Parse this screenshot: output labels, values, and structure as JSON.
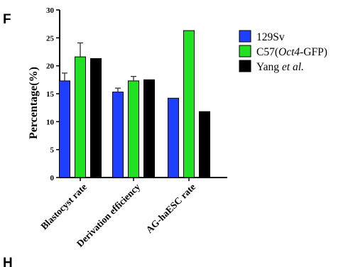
{
  "panel_labels": {
    "top": "F",
    "bottom": "H"
  },
  "chart_data": {
    "type": "bar",
    "ylabel": "Percentage(%)",
    "ylim": [
      0,
      30
    ],
    "yticks": [
      "0",
      "5",
      "10",
      "15",
      "20",
      "25",
      "30"
    ],
    "categories": [
      "Blastocyst rate",
      "Derivation efficiency",
      "AG-haESC rate"
    ],
    "series": [
      {
        "name": "129Sv",
        "color": "#1f3fff",
        "values": [
          17.3,
          15.3,
          14.2
        ],
        "errors": [
          1.4,
          0.7,
          null
        ]
      },
      {
        "name": "C57(Oct4-GFP)",
        "name_parts": {
          "pre": "C57(",
          "ital": "Oct4",
          "post": "-GFP)"
        },
        "color": "#22e022",
        "values": [
          21.6,
          17.3,
          26.3
        ],
        "errors": [
          2.5,
          0.8,
          null
        ]
      },
      {
        "name": "Yang et al.",
        "name_parts": {
          "pre": "Yang ",
          "ital": "et al.",
          "post": ""
        },
        "color": "#000000",
        "values": [
          21.3,
          17.5,
          11.8
        ],
        "errors": [
          null,
          null,
          null
        ]
      }
    ],
    "legend_position": "right",
    "grid": false
  }
}
